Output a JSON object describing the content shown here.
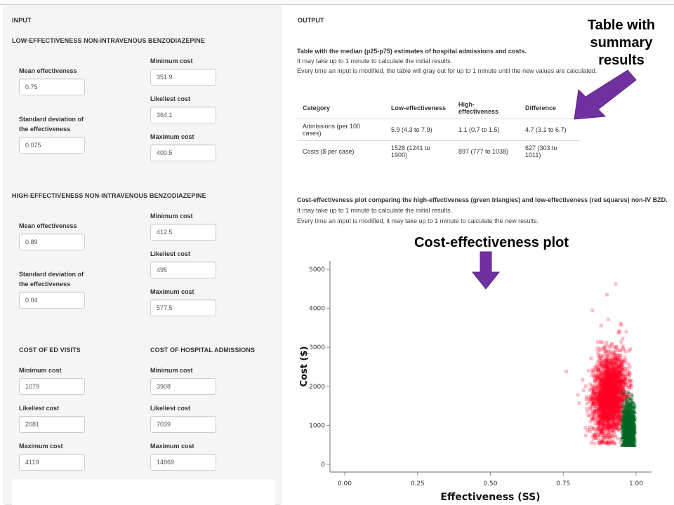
{
  "input": {
    "title": "INPUT",
    "low": {
      "heading": "LOW-EFFECTIVENESS NON-INTRAVENOUS BENZODIAZEPINE",
      "mean_label": "Mean effectiveness",
      "mean_value": "0.75",
      "sd_label_1": "Standard deviation of",
      "sd_label_2": "the effectiveness",
      "sd_value": "0.075",
      "min_label": "Minimum cost",
      "min_value": "351.9",
      "likely_label": "Likeliest cost",
      "likely_value": "364.1",
      "max_label": "Maximum cost",
      "max_value": "400.5"
    },
    "high": {
      "heading": "HIGH-EFFECTIVENESS NON-INTRAVENOUS BENZODIAZEPINE",
      "mean_label": "Mean effectiveness",
      "mean_value": "0.89",
      "sd_label_1": "Standard deviation of",
      "sd_label_2": "the effectiveness",
      "sd_value": "0.04",
      "min_label": "Minimum cost",
      "min_value": "412.5",
      "likely_label": "Likeliest cost",
      "likely_value": "495",
      "max_label": "Maximum cost",
      "max_value": "577.5"
    },
    "ed": {
      "heading": "COST OF ED VISITS",
      "min_label": "Minimum cost",
      "min_value": "1079",
      "likely_label": "Likeliest cost",
      "likely_value": "2081",
      "max_label": "Maximum cost",
      "max_value": "4119"
    },
    "hosp": {
      "heading": "COST OF HOSPITAL ADMISSIONS",
      "min_label": "Minimum cost",
      "min_value": "3908",
      "likely_label": "Likeliest cost",
      "likely_value": "7039",
      "max_label": "Maximum cost",
      "max_value": "14869"
    }
  },
  "output": {
    "title": "OUTPUT",
    "table_title": "Table with the median (p25-p75) estimates of hospital admissions and costs.",
    "table_note_1": "It may take up to 1 minute to calculate the initial results.",
    "table_note_2": "Every time an input is modified, the table will gray out for up to 1 minute until the new values are calculated.",
    "table": {
      "headers": [
        "Category",
        "Low-effectiveness",
        "High-effectiveness",
        "Difference"
      ],
      "rows": [
        [
          "Admissions (per 100 cases)",
          "5.9 (4.3 to 7.9)",
          "1.1 (0.7 to 1.5)",
          "4.7 (3.1 to 6.7)"
        ],
        [
          "Costs ($ per case)",
          "1528 (1241 to 1900)",
          "897 (777 to 1038)",
          "627 (303 to 1011)"
        ]
      ]
    },
    "plot_title": "Cost-effectiveness plot comparing the high-effectiveness (green triangles) and low-effectiveness (red squares) non-IV BZD.",
    "plot_note_1": "It may take up to 1 minute to calculate the initial results.",
    "plot_note_2": "Every time an input is modified, it may take up to 1 minute to calculate the new results."
  },
  "annotations": {
    "table_callout": [
      "Table with",
      "summary",
      "results"
    ],
    "plot_callout": "Cost-effectiveness plot",
    "arrow_color": "#7030a0"
  },
  "chart_data": {
    "type": "scatter",
    "title": "",
    "xlabel": "Effectiveness (SS)",
    "ylabel": "Cost ($)",
    "xlim": [
      0,
      1
    ],
    "ylim": [
      0,
      5000
    ],
    "x_ticks": [
      "0.00",
      "0.25",
      "0.50",
      "0.75",
      "1.00"
    ],
    "y_ticks": [
      "0",
      "1000",
      "2000",
      "3000",
      "4000",
      "5000"
    ],
    "grid": false,
    "legend": "none",
    "series": [
      {
        "name": "Low-effectiveness (red squares)",
        "color": "#ff0022",
        "marker": "square",
        "effectiveness_range": [
          0.78,
          0.99
        ],
        "effectiveness_center": 0.91,
        "cost_range": [
          500,
          4600
        ],
        "cost_center": 1600,
        "sample_points": [
          [
            0.76,
            2380
          ],
          [
            0.93,
            4620
          ],
          [
            0.9,
            4350
          ],
          [
            0.85,
            3950
          ],
          [
            0.88,
            3560
          ],
          [
            0.8,
            1780
          ],
          [
            0.82,
            1900
          ],
          [
            0.84,
            950
          ]
        ]
      },
      {
        "name": "High-effectiveness (green triangles)",
        "color": "#006622",
        "marker": "triangle",
        "effectiveness_range": [
          0.95,
          1.0
        ],
        "effectiveness_center": 0.975,
        "cost_range": [
          500,
          1850
        ],
        "cost_center": 900
      }
    ]
  }
}
